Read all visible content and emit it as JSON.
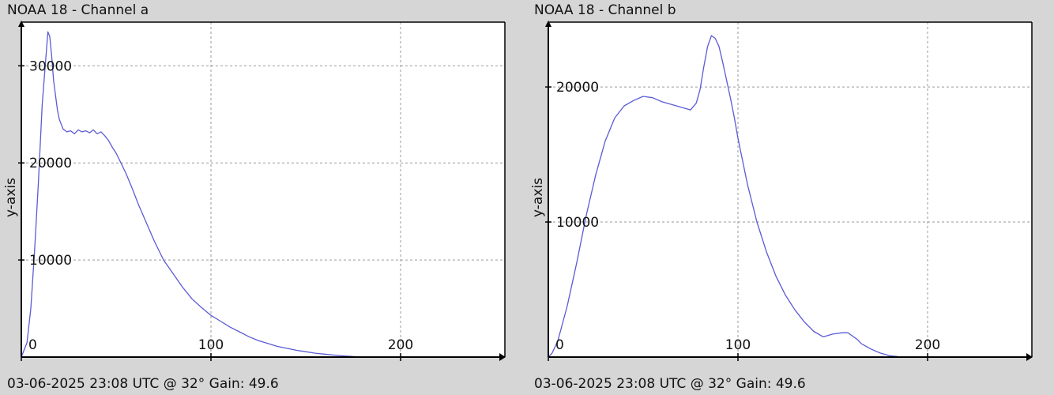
{
  "chart_data": [
    {
      "type": "line",
      "title": "NOAA 18 - Channel a",
      "xlabel": "",
      "ylabel": "y-axis",
      "footer": "03-06-2025 23:08 UTC @ 32° Gain: 49.6",
      "xlim": [
        0,
        255
      ],
      "ylim": [
        0,
        34500
      ],
      "xticks": [
        0,
        100,
        200
      ],
      "yticks": [
        10000,
        20000,
        30000
      ],
      "grid": true,
      "line_color": "#5b5bd6",
      "series": [
        {
          "x": [
            0,
            3,
            5,
            7,
            9,
            11,
            13,
            14,
            15,
            16,
            17,
            18,
            19,
            20,
            22,
            24,
            26,
            28,
            30,
            32,
            34,
            36,
            38,
            40,
            42,
            44,
            46,
            48,
            50,
            52,
            55,
            58,
            62,
            66,
            70,
            75,
            80,
            85,
            90,
            95,
            100,
            105,
            110,
            115,
            120,
            125,
            130,
            135,
            140,
            145,
            150,
            155,
            160,
            165,
            170,
            175,
            180,
            183
          ],
          "y": [
            0,
            1500,
            5000,
            11000,
            18000,
            26000,
            31000,
            33500,
            33000,
            31000,
            28500,
            27000,
            25500,
            24500,
            23500,
            23200,
            23300,
            23000,
            23400,
            23200,
            23300,
            23100,
            23400,
            23000,
            23200,
            22800,
            22300,
            21600,
            21000,
            20200,
            19000,
            17600,
            15600,
            13800,
            12000,
            10000,
            8600,
            7200,
            6000,
            5100,
            4300,
            3700,
            3100,
            2600,
            2100,
            1700,
            1400,
            1100,
            900,
            700,
            550,
            400,
            300,
            200,
            120,
            60,
            20,
            0
          ]
        }
      ]
    },
    {
      "type": "line",
      "title": "NOAA 18 - Channel b",
      "xlabel": "",
      "ylabel": "y-axis",
      "footer": "03-06-2025 23:08 UTC @ 32° Gain: 49.6",
      "xlim": [
        0,
        255
      ],
      "ylim": [
        0,
        24800
      ],
      "xticks": [
        0,
        100,
        200
      ],
      "yticks": [
        10000,
        20000
      ],
      "grid": true,
      "line_color": "#5b5bd6",
      "series": [
        {
          "x": [
            0,
            2,
            5,
            10,
            15,
            20,
            25,
            30,
            35,
            40,
            45,
            50,
            55,
            60,
            65,
            70,
            75,
            78,
            80,
            82,
            84,
            86,
            88,
            90,
            92,
            94,
            96,
            98,
            100,
            105,
            110,
            115,
            120,
            125,
            130,
            135,
            140,
            145,
            150,
            155,
            158,
            160,
            163,
            165,
            170,
            175,
            180,
            185,
            190
          ],
          "y": [
            0,
            300,
            1200,
            3800,
            7000,
            10500,
            13500,
            16000,
            17700,
            18600,
            19000,
            19300,
            19200,
            18900,
            18700,
            18500,
            18300,
            18800,
            19800,
            21500,
            23000,
            23800,
            23600,
            23000,
            21800,
            20500,
            19200,
            17800,
            16200,
            12800,
            10000,
            7800,
            6000,
            4600,
            3500,
            2600,
            1900,
            1500,
            1700,
            1800,
            1800,
            1600,
            1300,
            1000,
            600,
            300,
            100,
            30,
            0
          ]
        }
      ]
    }
  ]
}
